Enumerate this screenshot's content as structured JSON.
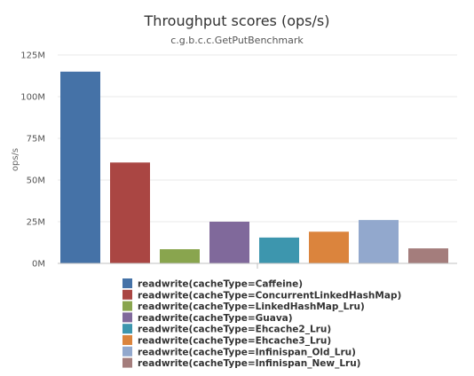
{
  "chart_data": {
    "type": "bar",
    "title": "Throughput scores (ops/s)",
    "subtitle": "c.g.b.c.c.GetPutBenchmark",
    "ylabel": "ops/s",
    "xlabel": "",
    "ylim": [
      0,
      125000000
    ],
    "y_ticks": [
      0,
      25000000,
      50000000,
      75000000,
      100000000,
      125000000
    ],
    "y_tick_labels": [
      "0M",
      "25M",
      "50M",
      "75M",
      "100M",
      "125M"
    ],
    "grid": true,
    "legend_position": "bottom",
    "series": [
      {
        "name": "readwrite(cacheType=Caffeine)",
        "value": 115000000,
        "color": "#4572A7"
      },
      {
        "name": "readwrite(cacheType=ConcurrentLinkedHashMap)",
        "value": 60500000,
        "color": "#AA4643"
      },
      {
        "name": "readwrite(cacheType=LinkedHashMap_Lru)",
        "value": 8500000,
        "color": "#89A54E"
      },
      {
        "name": "readwrite(cacheType=Guava)",
        "value": 25000000,
        "color": "#80699B"
      },
      {
        "name": "readwrite(cacheType=Ehcache2_Lru)",
        "value": 15500000,
        "color": "#3D96AE"
      },
      {
        "name": "readwrite(cacheType=Ehcache3_Lru)",
        "value": 19000000,
        "color": "#DB843D"
      },
      {
        "name": "readwrite(cacheType=Infinispan_Old_Lru)",
        "value": 26000000,
        "color": "#92A8CD"
      },
      {
        "name": "readwrite(cacheType=Infinispan_New_Lru)",
        "value": 9000000,
        "color": "#A47D7C"
      }
    ]
  }
}
